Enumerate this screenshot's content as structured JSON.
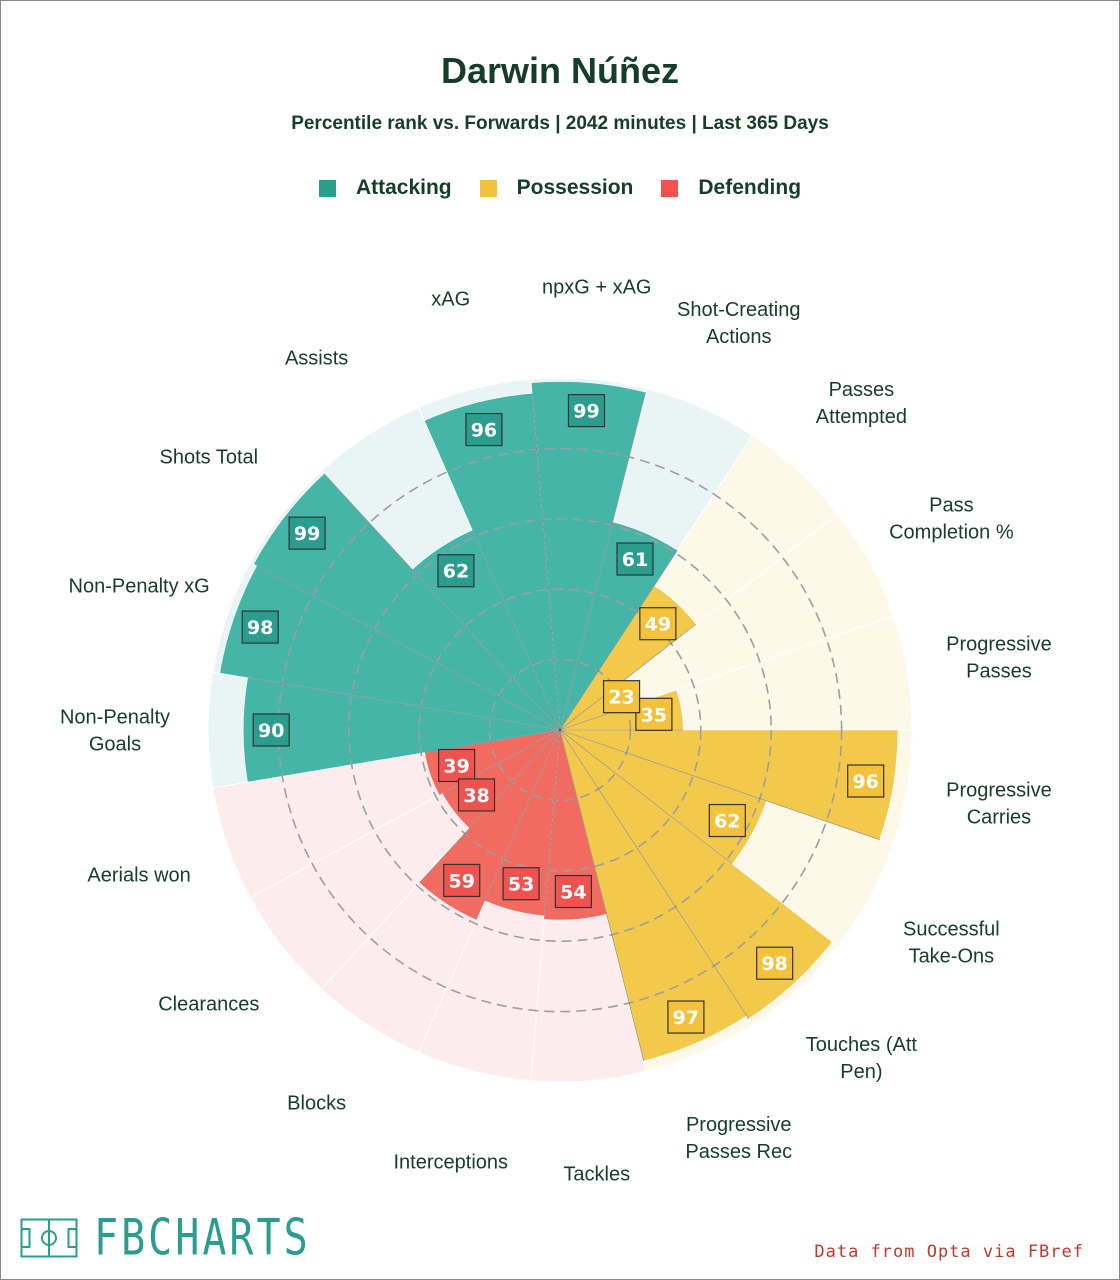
{
  "header": {
    "title": "Darwin Núñez",
    "subtitle": "Percentile rank vs. Forwards | 2042 minutes | Last 365 Days"
  },
  "legend": [
    {
      "label": "Attacking",
      "color": "#2a9d8f"
    },
    {
      "label": "Possession",
      "color": "#f3c13a"
    },
    {
      "label": "Defending",
      "color": "#ef5350"
    }
  ],
  "footer": {
    "logo_text": "FBCHARTS",
    "credit": "Data from Opta via FBref"
  },
  "chart_data": {
    "type": "polar-bar",
    "range": [
      0,
      100
    ],
    "categories_order": "counterclockwise from Progressive Passes",
    "groups": {
      "Attacking": {
        "bar": "#45b5a8",
        "bg": "#e8f5f4",
        "label": "#2a9d8f"
      },
      "Possession": {
        "bar": "#f3c94b",
        "bg": "#fdf8e8",
        "label": "#f3c13a"
      },
      "Defending": {
        "bar": "#f26b60",
        "bg": "#fdeced",
        "label": "#ef5350"
      }
    },
    "stats": [
      {
        "label": "Progressive\nPasses",
        "value": 35,
        "group": "Possession"
      },
      {
        "label": "Pass\nCompletion %",
        "value": 23,
        "group": "Possession"
      },
      {
        "label": "Passes\nAttempted",
        "value": 49,
        "group": "Possession"
      },
      {
        "label": "Shot-Creating\nActions",
        "value": 61,
        "group": "Attacking"
      },
      {
        "label": "npxG + xAG",
        "value": 99,
        "group": "Attacking"
      },
      {
        "label": "xAG",
        "value": 96,
        "group": "Attacking"
      },
      {
        "label": "Assists",
        "value": 62,
        "group": "Attacking"
      },
      {
        "label": "Shots Total",
        "value": 99,
        "group": "Attacking"
      },
      {
        "label": "Non-Penalty xG",
        "value": 98,
        "group": "Attacking"
      },
      {
        "label": "Non-Penalty\nGoals",
        "value": 90,
        "group": "Attacking"
      },
      {
        "label": "Aerials won",
        "value": 39,
        "group": "Defending"
      },
      {
        "label": "Clearances",
        "value": 38,
        "group": "Defending"
      },
      {
        "label": "Blocks",
        "value": 59,
        "group": "Defending"
      },
      {
        "label": "Interceptions",
        "value": 53,
        "group": "Defending"
      },
      {
        "label": "Tackles",
        "value": 54,
        "group": "Defending"
      },
      {
        "label": "Progressive\nPasses Rec",
        "value": 97,
        "group": "Possession"
      },
      {
        "label": "Touches (Att\nPen)",
        "value": 98,
        "group": "Possession"
      },
      {
        "label": "Successful\nTake-Ons",
        "value": 62,
        "group": "Possession"
      },
      {
        "label": "Progressive\nCarries",
        "value": 96,
        "group": "Possession"
      }
    ]
  }
}
